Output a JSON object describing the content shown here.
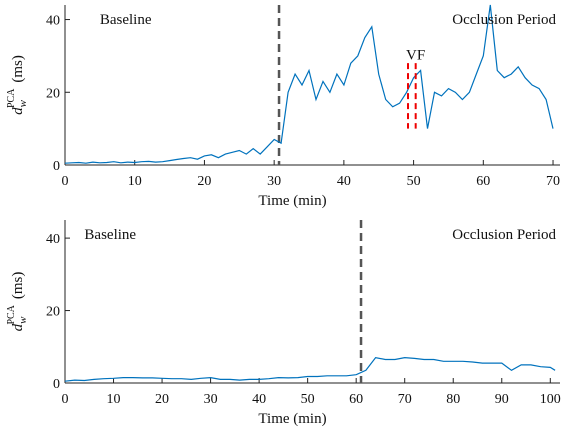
{
  "chart_data": [
    {
      "type": "line",
      "xlabel": "Time (min)",
      "ylabel": {
        "base": "d",
        "sub": "w",
        "sup": "PCA",
        "unit": "(ms)"
      },
      "annotations": [
        "Baseline",
        "Occlusion Period",
        "VF"
      ],
      "onset": 30.7,
      "vf_markers": [
        49.2,
        50.3
      ],
      "x": [
        0,
        1,
        2,
        3,
        4,
        5,
        6,
        7,
        8,
        9,
        10,
        11,
        12,
        13,
        14,
        15,
        16,
        17,
        18,
        19,
        20,
        21,
        22,
        23,
        24,
        25,
        26,
        27,
        28,
        29,
        30,
        31,
        32,
        33,
        34,
        35,
        36,
        37,
        38,
        39,
        40,
        41,
        42,
        43,
        44,
        45,
        46,
        47,
        48,
        49,
        50,
        51,
        52,
        53,
        54,
        55,
        56,
        57,
        58,
        59,
        60,
        61,
        62,
        63,
        64,
        65,
        66,
        67,
        68,
        69,
        70
      ],
      "series": [
        {
          "color": "#0072bd",
          "values": [
            0.5,
            0.6,
            0.7,
            0.5,
            0.8,
            0.6,
            0.7,
            0.9,
            0.6,
            0.8,
            0.7,
            0.9,
            1,
            0.8,
            0.9,
            1.2,
            1.5,
            1.8,
            2,
            1.6,
            2.5,
            2.8,
            2,
            3,
            3.5,
            4,
            3,
            4.5,
            3,
            5,
            7,
            6,
            20,
            25,
            22,
            26,
            18,
            23,
            20,
            25,
            22,
            28,
            30,
            35,
            38,
            25,
            18,
            16,
            17,
            20,
            24,
            26,
            10,
            20,
            19,
            21,
            20,
            18,
            20,
            25,
            30,
            44,
            26,
            24,
            25,
            27,
            24,
            22,
            21,
            18,
            10
          ]
        }
      ],
      "xlim": [
        0,
        71
      ],
      "ylim": [
        0,
        44
      ],
      "xticks": [
        0,
        10,
        20,
        30,
        40,
        50,
        60,
        70
      ],
      "yticks": [
        0,
        20,
        40
      ]
    },
    {
      "type": "line",
      "xlabel": "Time (min)",
      "ylabel": {
        "base": "d",
        "sub": "w",
        "sup": "PCA",
        "unit": "(ms)"
      },
      "annotations": [
        "Baseline",
        "Occlusion Period"
      ],
      "onset": 61,
      "x": [
        0,
        2,
        4,
        6,
        8,
        10,
        12,
        14,
        16,
        18,
        20,
        22,
        24,
        26,
        28,
        30,
        32,
        34,
        36,
        38,
        40,
        42,
        44,
        46,
        48,
        50,
        52,
        54,
        56,
        58,
        60,
        62,
        64,
        66,
        68,
        70,
        72,
        74,
        76,
        78,
        80,
        82,
        84,
        86,
        88,
        90,
        92,
        94,
        96,
        98,
        100,
        101
      ],
      "series": [
        {
          "color": "#0072bd",
          "values": [
            0.5,
            0.8,
            0.7,
            1,
            1.2,
            1.3,
            1.5,
            1.5,
            1.4,
            1.4,
            1.3,
            1.2,
            1.2,
            1,
            1.3,
            1.5,
            1,
            1,
            0.8,
            1,
            1,
            1.2,
            1.5,
            1.4,
            1.5,
            1.8,
            1.8,
            2,
            2,
            2,
            2.3,
            3.5,
            7,
            6.5,
            6.5,
            7,
            6.8,
            6.5,
            6.5,
            6,
            6,
            6,
            5.8,
            5.5,
            5.5,
            5.5,
            3.5,
            5,
            5,
            4.5,
            4.3,
            3.5
          ]
        }
      ],
      "xlim": [
        0,
        102
      ],
      "ylim": [
        0,
        45
      ],
      "xticks": [
        0,
        10,
        20,
        30,
        40,
        50,
        60,
        70,
        80,
        90,
        100
      ],
      "yticks": [
        0,
        20,
        40
      ]
    }
  ]
}
